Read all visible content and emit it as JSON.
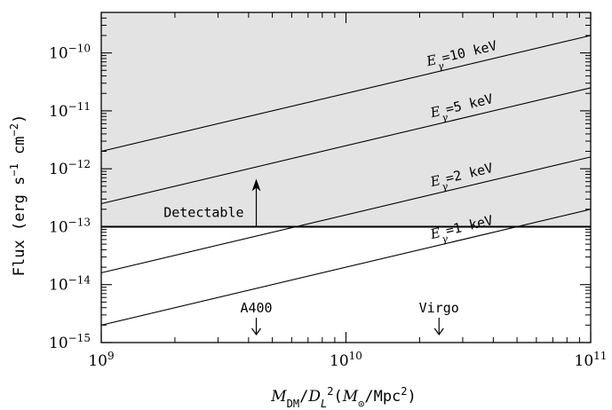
{
  "chart_data": {
    "type": "line",
    "x_scale": "log",
    "y_scale": "log",
    "xlim": [
      1000000000.0,
      100000000000.0
    ],
    "ylim": [
      1e-15,
      5e-10
    ],
    "grid": false,
    "x_ticks": [
      {
        "value": 1000000000.0,
        "base": "10",
        "exp": "9"
      },
      {
        "value": 10000000000.0,
        "base": "10",
        "exp": "10"
      },
      {
        "value": 100000000000.0,
        "base": "10",
        "exp": "11"
      }
    ],
    "y_ticks": [
      {
        "value": 1e-15,
        "base": "10",
        "exp": "−15"
      },
      {
        "value": 1e-14,
        "base": "10",
        "exp": "−14"
      },
      {
        "value": 1e-13,
        "base": "10",
        "exp": "−13"
      },
      {
        "value": 1e-12,
        "base": "10",
        "exp": "−12"
      },
      {
        "value": 1e-11,
        "base": "10",
        "exp": "−11"
      },
      {
        "value": 1e-10,
        "base": "10",
        "exp": "−10"
      }
    ],
    "xlabel": {
      "m": "M",
      "m_sub": "DM",
      "slash": "/",
      "d": "D",
      "d_sub": "L",
      "d_sup": "2",
      "paren_open": "(",
      "msun": "M",
      "msun_sub": "⊙",
      "unit": "/Mpc",
      "unit_sup": "2",
      "paren_close": ")"
    },
    "ylabel": {
      "prefix": "Flux (erg s",
      "s_sup": "−1",
      "mid": " cm",
      "cm_sup": "−2",
      "suffix": ")"
    },
    "series": [
      {
        "label_prefix": "E",
        "label_sub": "γ",
        "label_rest": "=10 keV",
        "x": [
          1000000000.0,
          100000000000.0
        ],
        "y": [
          2e-12,
          2e-10
        ]
      },
      {
        "label_prefix": "E",
        "label_sub": "γ",
        "label_rest": "=5 keV",
        "x": [
          1000000000.0,
          100000000000.0
        ],
        "y": [
          2.5e-13,
          2.5e-11
        ]
      },
      {
        "label_prefix": "E",
        "label_sub": "γ",
        "label_rest": "=2 keV",
        "x": [
          1000000000.0,
          100000000000.0
        ],
        "y": [
          1.6e-14,
          1.6e-12
        ]
      },
      {
        "label_prefix": "E",
        "label_sub": "γ",
        "label_rest": "=1 keV",
        "x": [
          1000000000.0,
          100000000000.0
        ],
        "y": [
          2e-15,
          2e-13
        ]
      }
    ],
    "threshold": {
      "y": 1e-13,
      "label": "Detectable",
      "shaded_color": "#e3e3e3"
    },
    "annotations": [
      {
        "text": "A400",
        "x": 4300000000.0
      },
      {
        "text": "Virgo",
        "x": 24000000000.0
      }
    ]
  }
}
